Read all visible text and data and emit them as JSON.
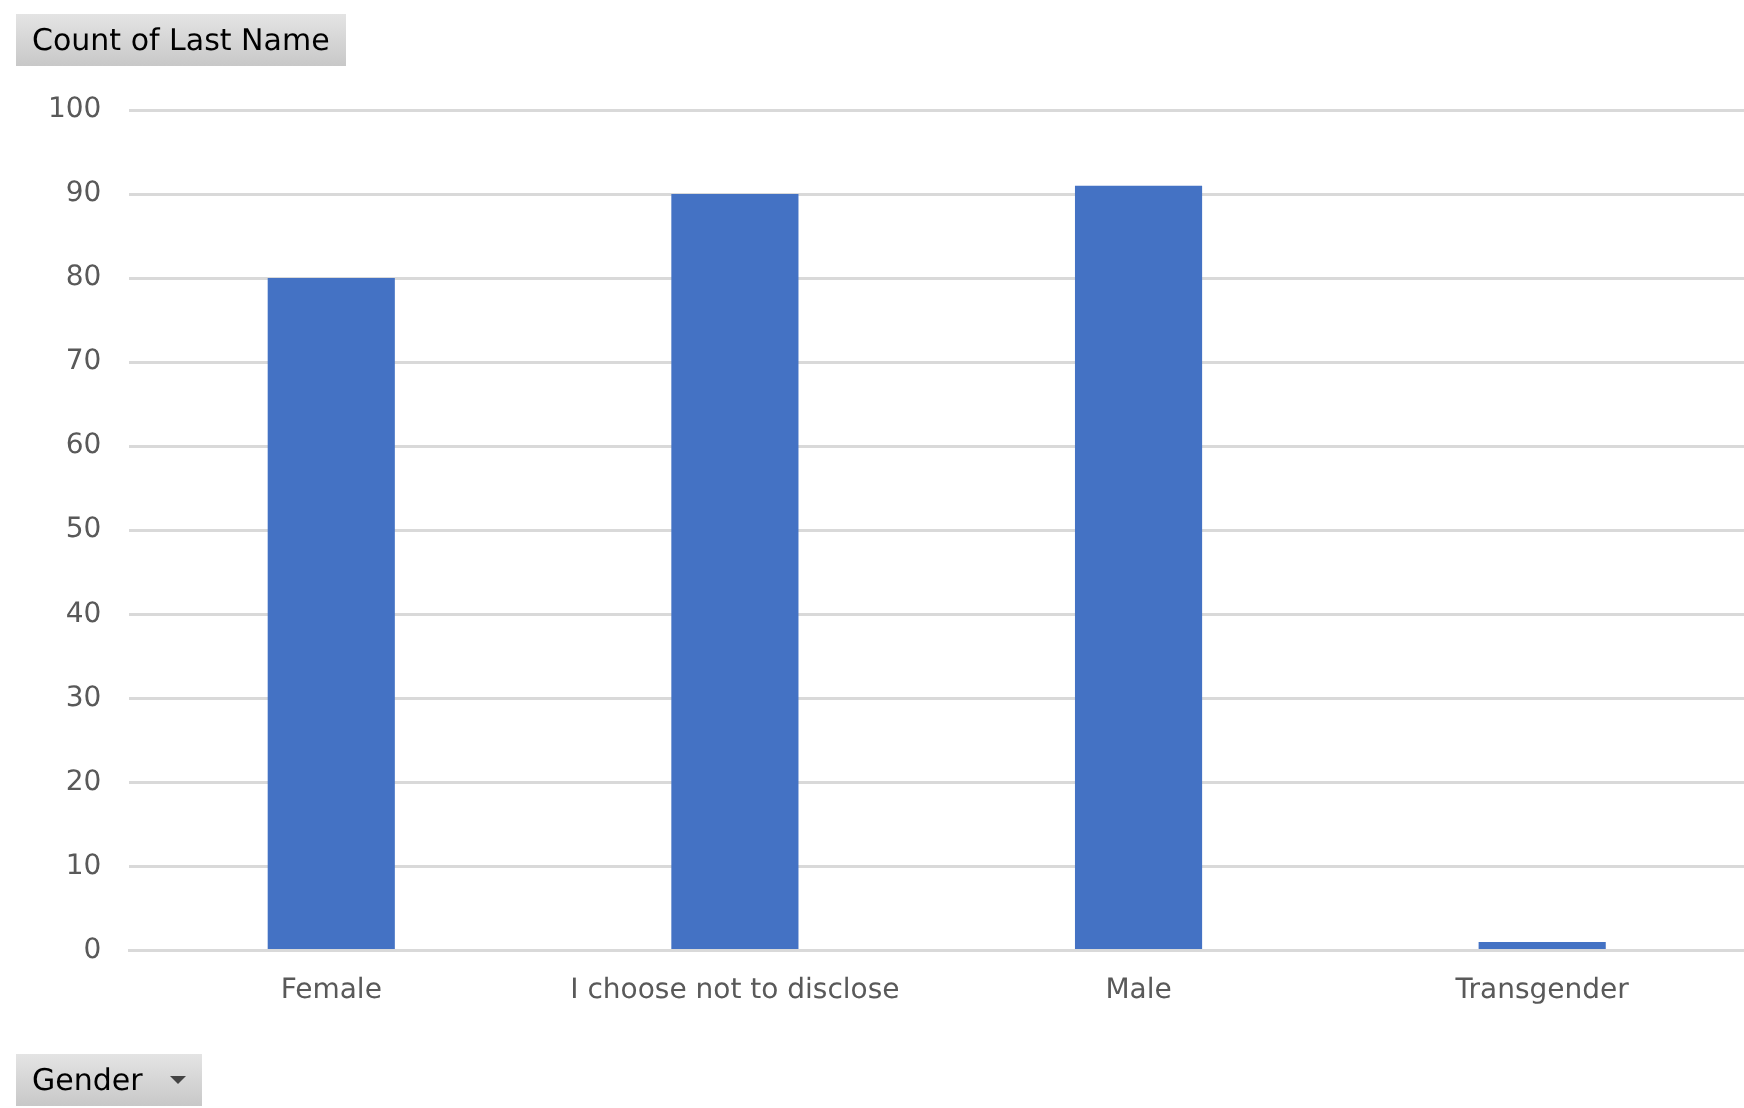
{
  "chart_data": {
    "type": "bar",
    "ylabel": "Count of Last Name",
    "xlabel": "Gender",
    "categories": [
      "Female",
      "I choose not to disclose",
      "Male",
      "Transgender"
    ],
    "values": [
      80,
      90,
      91,
      1
    ],
    "color": "#4472c4",
    "ylim": [
      0,
      100
    ],
    "yticks": [
      0,
      10,
      20,
      30,
      40,
      50,
      60,
      70,
      80,
      90,
      100
    ],
    "grid": "y",
    "legend": false
  }
}
